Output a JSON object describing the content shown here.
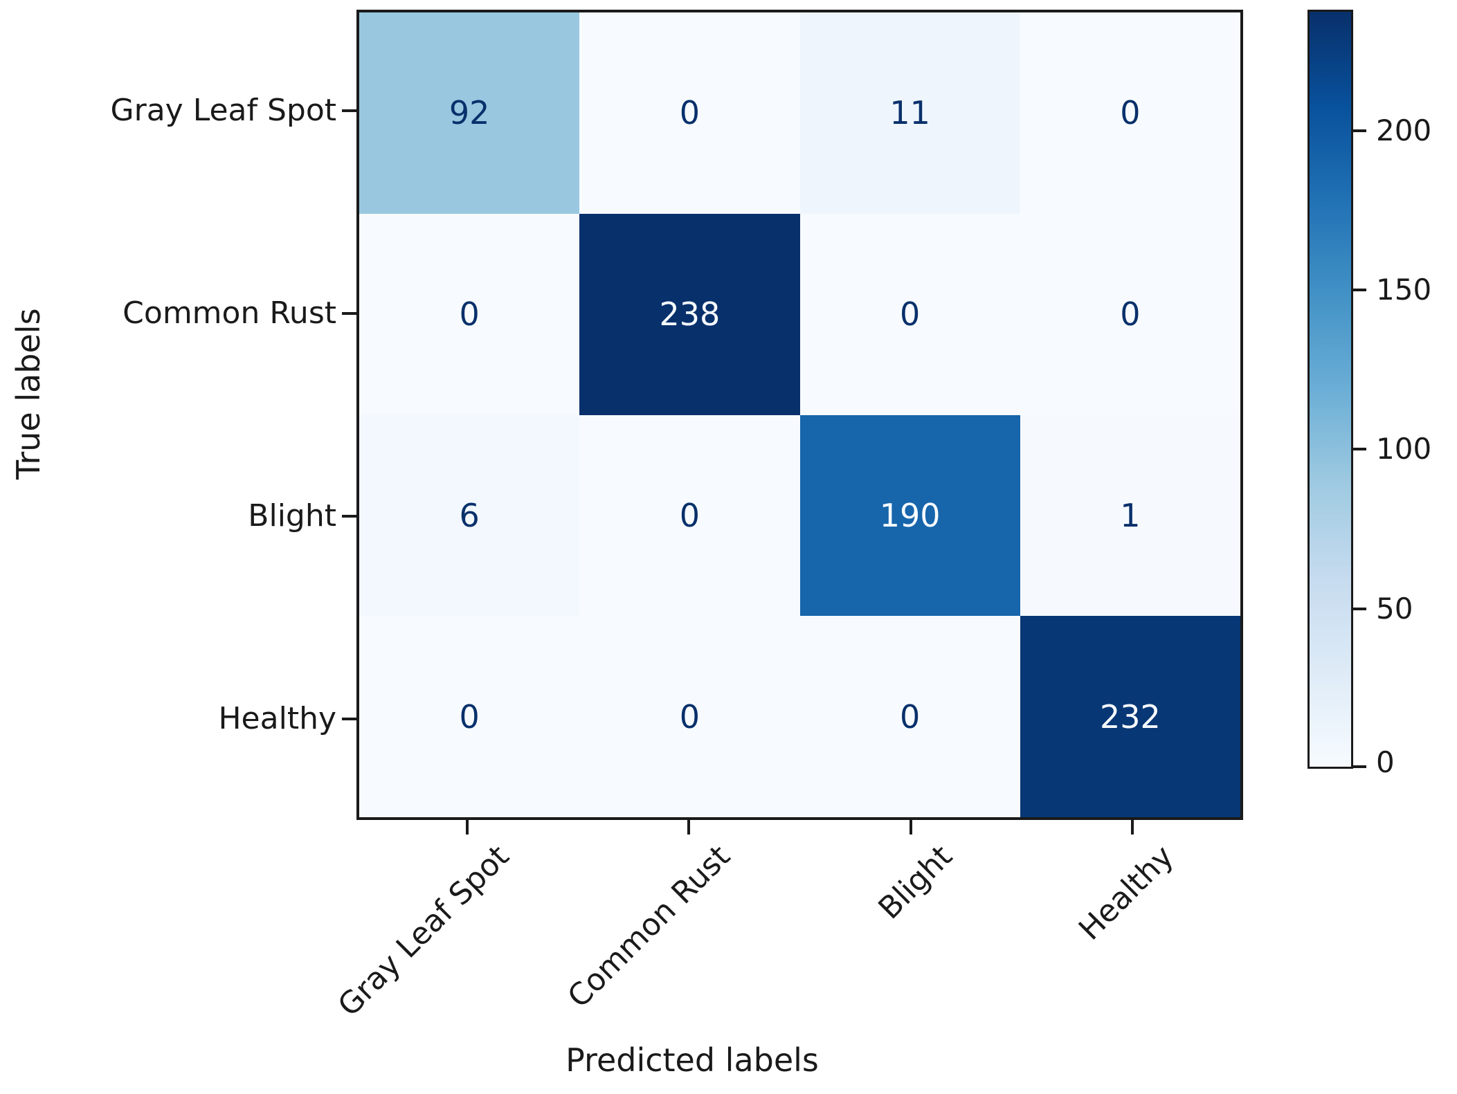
{
  "chart_data": {
    "type": "heatmap",
    "title": "",
    "xlabel": "Predicted labels",
    "ylabel": "True labels",
    "categories": [
      "Gray Leaf Spot",
      "Common Rust",
      "Blight",
      "Healthy"
    ],
    "matrix": [
      [
        92,
        0,
        11,
        0
      ],
      [
        0,
        238,
        0,
        0
      ],
      [
        6,
        0,
        190,
        1
      ],
      [
        0,
        0,
        0,
        232
      ]
    ],
    "vmin": 0,
    "vmax": 238,
    "colorbar_ticks": [
      0,
      50,
      100,
      150,
      200
    ],
    "colormap_name": "Blues",
    "colormap_stops": [
      "#f7fbff",
      "#deebf7",
      "#c6dbef",
      "#9ecae1",
      "#6baed6",
      "#4292c6",
      "#2171b5",
      "#08519c",
      "#08306b"
    ],
    "cell_text_dark": "#08306b",
    "cell_text_light": "#f7fbff",
    "axis_color": "#1a1a1a",
    "legend_position": "right-colorbar",
    "grid": false
  }
}
